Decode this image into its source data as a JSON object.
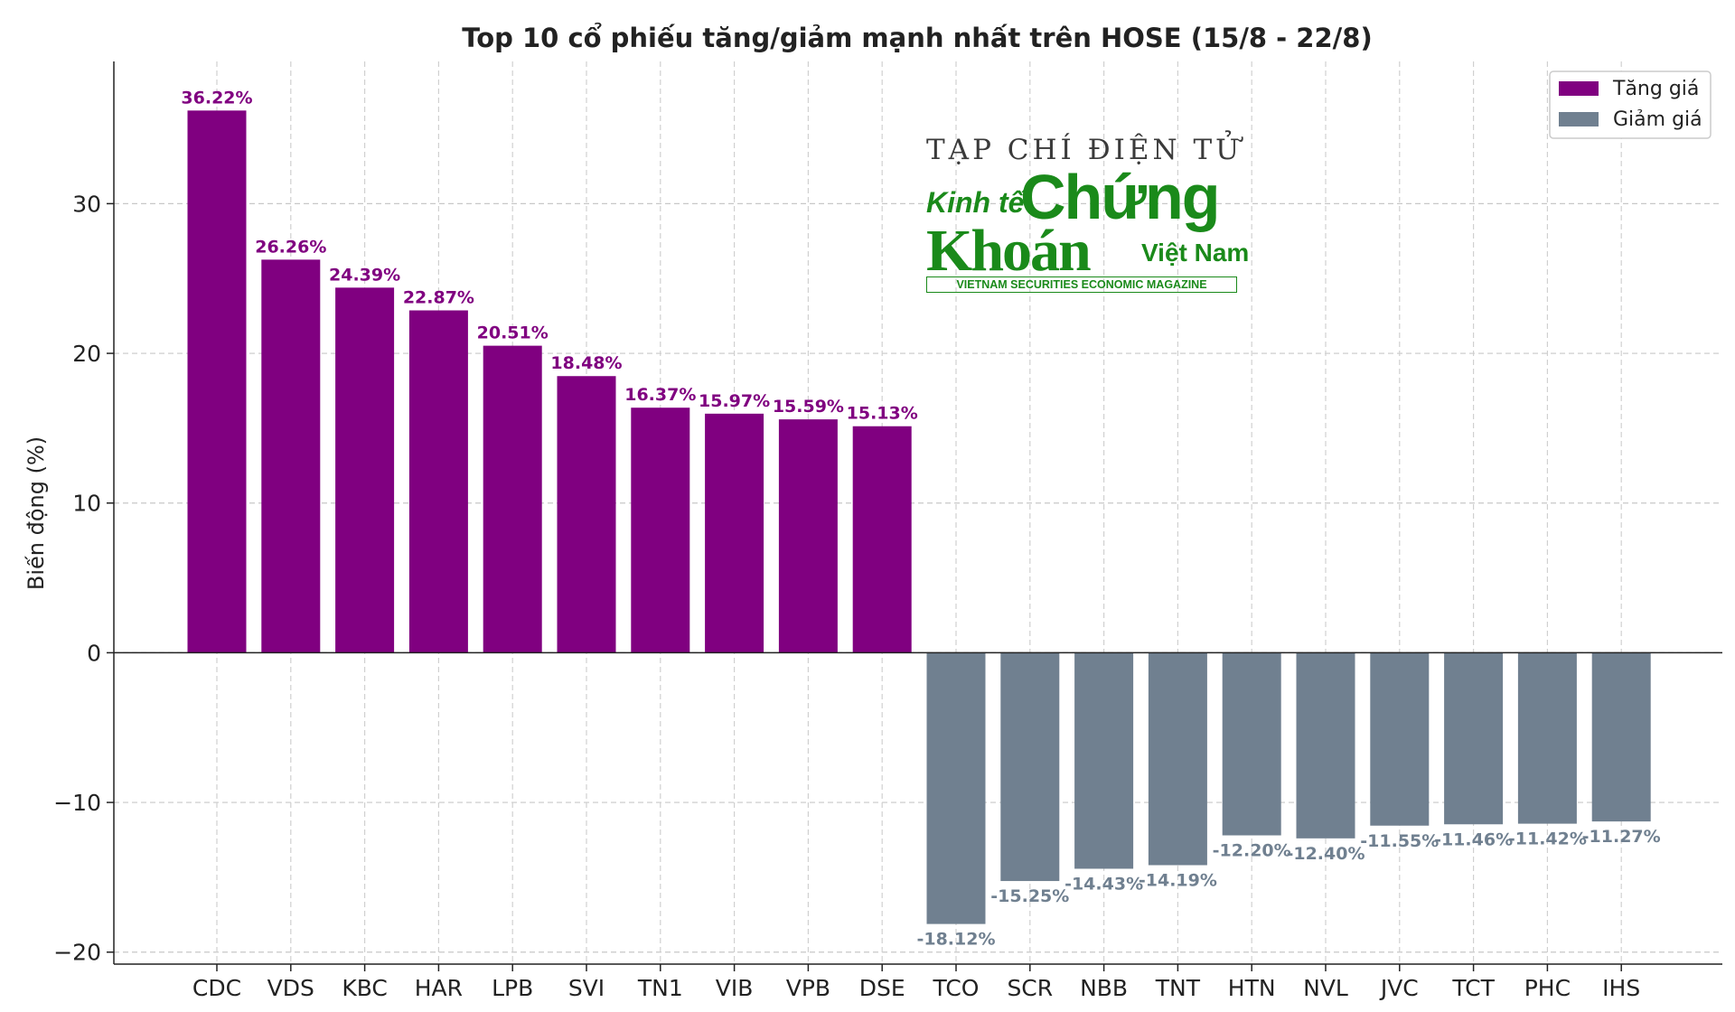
{
  "chart_data": {
    "type": "bar",
    "title": "Top 10 cổ phiếu tăng/giảm mạnh nhất trên HOSE (15/8 - 22/8)",
    "xlabel": "",
    "ylabel": "Biến động (%)",
    "ylim": [
      -20.8,
      39.5
    ],
    "yticks": [
      -20,
      -10,
      0,
      10,
      20,
      30
    ],
    "grid": true,
    "legend_position": "top-right",
    "categories": [
      "CDC",
      "VDS",
      "KBC",
      "HAR",
      "LPB",
      "SVI",
      "TN1",
      "VIB",
      "VPB",
      "DSE",
      "TCO",
      "SCR",
      "NBB",
      "TNT",
      "HTN",
      "NVL",
      "JVC",
      "TCT",
      "PHC",
      "IHS"
    ],
    "values": [
      36.22,
      26.26,
      24.39,
      22.87,
      20.51,
      18.48,
      16.37,
      15.97,
      15.59,
      15.13,
      -18.12,
      -15.25,
      -14.43,
      -14.19,
      -12.2,
      -12.4,
      -11.55,
      -11.46,
      -11.42,
      -11.27
    ],
    "labels": [
      "36.22%",
      "26.26%",
      "24.39%",
      "22.87%",
      "20.51%",
      "18.48%",
      "16.37%",
      "15.97%",
      "15.59%",
      "15.13%",
      "-18.12%",
      "-15.25%",
      "-14.43%",
      "-14.19%",
      "-12.20%",
      "-12.40%",
      "-11.55%",
      "-11.46%",
      "-11.42%",
      "-11.27%"
    ],
    "series": [
      {
        "name": "Tăng giá",
        "color": "#800080"
      },
      {
        "name": "Giảm giá",
        "color": "#708090"
      }
    ]
  },
  "watermark": {
    "line1": "TẠP CHÍ ĐIỆN TỬ",
    "kinhte": "Kinh tế",
    "chung": "Chứng",
    "khoan": "Khoán",
    "vietnam": "Việt Nam",
    "subtitle": "VIETNAM SECURITIES ECONOMIC MAGAZINE"
  }
}
